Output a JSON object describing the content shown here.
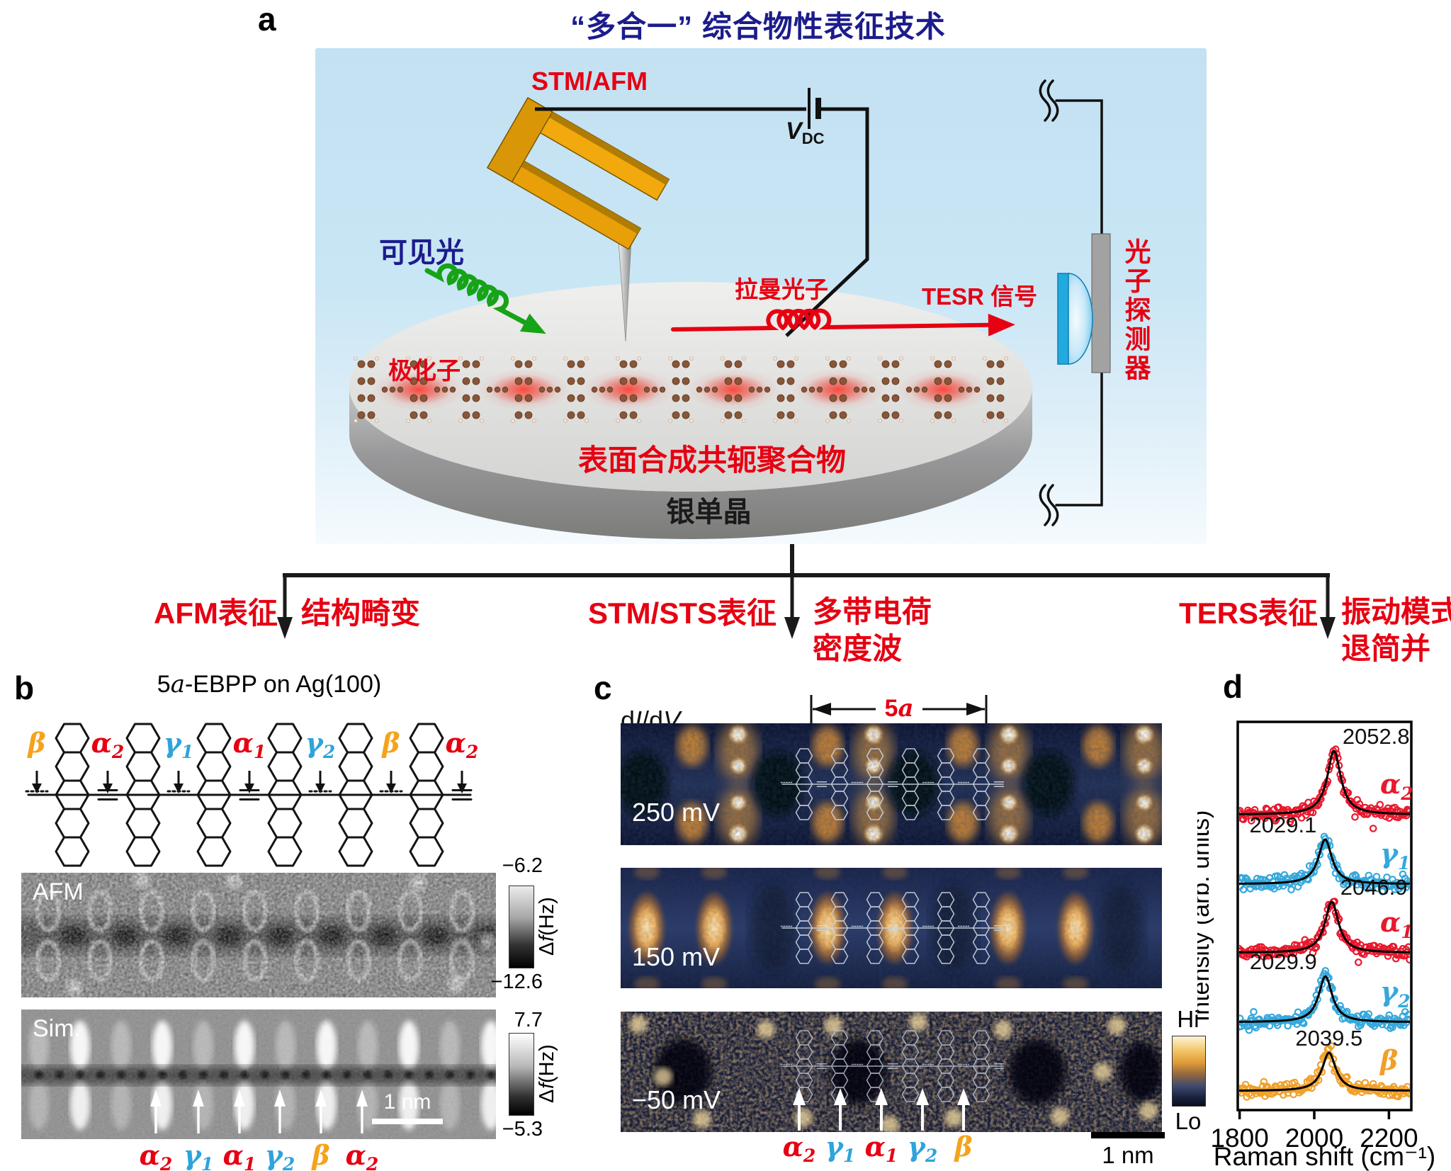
{
  "accent": {
    "red": "#e60012",
    "cyan": "#2da4dc",
    "orange": "#f5a31c",
    "navy": "#1c1c8c"
  },
  "panel_a": {
    "label": "a",
    "title": "“多合一” 综合物性表征技术",
    "probe_label": "STM/AFM",
    "bias_v": "V",
    "bias_sub": "DC",
    "visible_light": "可见光",
    "polaron": "极化子",
    "raman_photon": "拉曼光子",
    "tesr_signal": "TESR 信号",
    "photon_detector": "光子探测器",
    "polymer": "表面合成共轭聚合物",
    "substrate": "银单晶"
  },
  "branches": [
    {
      "technique": "AFM表征",
      "result_line1": "结构畸变",
      "result_line2": ""
    },
    {
      "technique": "STM/STS表征",
      "result_line1": "多带电荷",
      "result_line2": "密度波"
    },
    {
      "technique": "TERS表征",
      "result_line1": "振动模式",
      "result_line2": "退简并"
    }
  ],
  "panel_b": {
    "label": "b",
    "title_prefix": "5",
    "title_italic": "a",
    "title_suffix": "-EBPP on Ag(100)",
    "span_prefix": "5",
    "span_italic": "a",
    "sites": [
      {
        "base": "β",
        "sub": "",
        "color": "#f5a31c"
      },
      {
        "base": "α",
        "sub": "2",
        "color": "#e60012"
      },
      {
        "base": "γ",
        "sub": "1",
        "color": "#2da4dc"
      },
      {
        "base": "α",
        "sub": "1",
        "color": "#e60012"
      },
      {
        "base": "γ",
        "sub": "2",
        "color": "#2da4dc"
      },
      {
        "base": "β",
        "sub": "",
        "color": "#f5a31c"
      },
      {
        "base": "α",
        "sub": "2",
        "color": "#e60012"
      }
    ],
    "afm": {
      "tag": "AFM",
      "cbar_max": "−6.2",
      "cbar_min": "−12.6",
      "cbar_delta": "Δ",
      "cbar_f": "f",
      "cbar_unit": " (Hz)"
    },
    "sim": {
      "tag": "Sim.",
      "cbar_max": "7.7",
      "cbar_min": "−5.3",
      "cbar_delta": "Δ",
      "cbar_f": "f",
      "cbar_unit": " (Hz)",
      "scalebar": "1 nm"
    },
    "sim_sites": [
      {
        "base": "α",
        "sub": "2",
        "color": "#e60012"
      },
      {
        "base": "γ",
        "sub": "1",
        "color": "#2da4dc"
      },
      {
        "base": "α",
        "sub": "1",
        "color": "#e60012"
      },
      {
        "base": "γ",
        "sub": "2",
        "color": "#2da4dc"
      },
      {
        "base": "β",
        "sub": "",
        "color": "#f5a31c"
      },
      {
        "base": "α",
        "sub": "2",
        "color": "#e60012"
      }
    ]
  },
  "panel_c": {
    "label": "c",
    "map_type_d1": "d",
    "map_type_i": "I",
    "map_type_d2": "/d",
    "map_type_v": "V",
    "span_prefix": "5",
    "span_italic": "a",
    "biases": [
      "250 mV",
      "150 mV",
      "−50 mV"
    ],
    "cbar_hi": "Hi",
    "cbar_lo": "Lo",
    "scalebar": "1 nm",
    "sites": [
      {
        "base": "α",
        "sub": "2",
        "color": "#e60012"
      },
      {
        "base": "γ",
        "sub": "1",
        "color": "#2da4dc"
      },
      {
        "base": "α",
        "sub": "1",
        "color": "#e60012"
      },
      {
        "base": "γ",
        "sub": "2",
        "color": "#2da4dc"
      },
      {
        "base": "β",
        "sub": "",
        "color": "#f5a31c"
      }
    ]
  },
  "panel_d": {
    "label": "d"
  },
  "chart_data": {
    "type": "line",
    "title": "",
    "xlabel": "Raman shift (cm⁻¹)",
    "ylabel": "Intensity (arb. units)",
    "x_ticks": [
      1800,
      2000,
      2200
    ],
    "xlim": [
      1795,
      2260
    ],
    "grid": false,
    "legend_position": "inline-right",
    "peak_fit": "Lorentzian",
    "lorentz_gamma_cm1": 22,
    "series": [
      {
        "name_base": "α",
        "name_sub": "2",
        "color": "#e8192d",
        "peak_center": 2052.8,
        "peak_label": "2052.8",
        "label_side": "right",
        "peak_height_rel": 1.0
      },
      {
        "name_base": "γ",
        "name_sub": "1",
        "color": "#35a8dc",
        "peak_center": 2029.1,
        "peak_label": "2029.1",
        "label_side": "left",
        "peak_height_rel": 0.7
      },
      {
        "name_base": "α",
        "name_sub": "1",
        "color": "#e8192d",
        "peak_center": 2046.9,
        "peak_label": "2046.9",
        "label_side": "right",
        "peak_height_rel": 0.8
      },
      {
        "name_base": "γ",
        "name_sub": "2",
        "color": "#35a8dc",
        "peak_center": 2029.9,
        "peak_label": "2029.9",
        "label_side": "left",
        "peak_height_rel": 0.72
      },
      {
        "name_base": "β",
        "name_sub": "",
        "color": "#f0a02a",
        "peak_center": 2039.5,
        "peak_label": "2039.5",
        "label_side": "center",
        "peak_height_rel": 0.6
      }
    ]
  }
}
